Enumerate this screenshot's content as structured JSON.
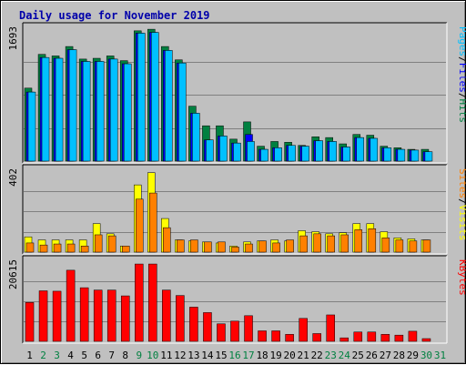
{
  "chart_data": {
    "type": "bar",
    "title": "Daily usage for November 2019",
    "x": [
      "1",
      "2",
      "3",
      "4",
      "5",
      "6",
      "7",
      "8",
      "9",
      "10",
      "11",
      "12",
      "13",
      "14",
      "15",
      "16",
      "17",
      "18",
      "19",
      "20",
      "21",
      "22",
      "23",
      "24",
      "25",
      "26",
      "27",
      "28",
      "29",
      "30",
      "31"
    ],
    "weekend_days": [
      2,
      3,
      9,
      10,
      16,
      17,
      23,
      24,
      30,
      31
    ],
    "colors": {
      "hits": "#008040",
      "files": "#0000ff",
      "pages": "#00c0ff",
      "visits": "#ffff00",
      "sites": "#ff8000",
      "kbytes": "#ff0000",
      "weekday_label": "#000000",
      "weekend_label": "#008040"
    },
    "panels": [
      {
        "name": "traffic",
        "ymax_label": "1693",
        "ymax": 1693,
        "right_label": [
          "Pages",
          "/",
          "Files",
          "/",
          "Hits"
        ],
        "right_label_colors": [
          "#00c0ff",
          "#000000",
          "#0000ff",
          "#000000",
          "#008040"
        ],
        "series": [
          {
            "name": "Hits",
            "color": "#008040",
            "values": [
              930,
              1360,
              1340,
              1460,
              1300,
              1310,
              1340,
              1280,
              1660,
              1680,
              1460,
              1290,
              700,
              450,
              450,
              280,
              500,
              190,
              250,
              240,
              200,
              310,
              300,
              220,
              340,
              330,
              190,
              170,
              150,
              150,
              0
            ]
          },
          {
            "name": "Files",
            "color": "#0000ff",
            "values": [
              880,
              1320,
              1310,
              1420,
              1270,
              1270,
              1300,
              1240,
              1630,
              1640,
              1410,
              1250,
              610,
              270,
              320,
              230,
              340,
              150,
              170,
              200,
              190,
              260,
              250,
              180,
              300,
              290,
              170,
              150,
              140,
              120,
              0
            ]
          },
          {
            "name": "Pages",
            "color": "#00c0ff",
            "values": [
              880,
              1320,
              1310,
              1420,
              1270,
              1270,
              1300,
              1240,
              1630,
              1640,
              1410,
              1250,
              610,
              270,
              320,
              230,
              250,
              150,
              170,
              200,
              190,
              260,
              250,
              180,
              300,
              290,
              170,
              150,
              140,
              120,
              0
            ]
          }
        ]
      },
      {
        "name": "visits",
        "ymax_label": "402",
        "ymax": 402,
        "right_label": [
          "Sites",
          "/",
          "Visits"
        ],
        "right_label_colors": [
          "#ff8000",
          "#000000",
          "#ffff00"
        ],
        "series": [
          {
            "name": "Visits",
            "color": "#ffff00",
            "values": [
              75,
              60,
              60,
              60,
              60,
              140,
              90,
              30,
              330,
              390,
              165,
              60,
              55,
              50,
              45,
              30,
              50,
              55,
              60,
              55,
              105,
              100,
              90,
              95,
              140,
              140,
              100,
              70,
              65,
              60,
              0
            ]
          },
          {
            "name": "Sites",
            "color": "#ff8000",
            "values": [
              45,
              35,
              40,
              40,
              30,
              85,
              80,
              30,
              260,
              290,
              120,
              60,
              60,
              50,
              50,
              25,
              40,
              55,
              45,
              60,
              80,
              90,
              80,
              85,
              110,
              115,
              70,
              60,
              55,
              60,
              0
            ]
          }
        ]
      },
      {
        "name": "kbytes",
        "ymax_label": "20615",
        "ymax": 20615,
        "right_label": [
          "KBytes"
        ],
        "right_label_colors": [
          "#ff0000"
        ],
        "series": [
          {
            "name": "KBytes",
            "color": "#ff0000",
            "values": [
              10000,
              13000,
              12900,
              18300,
              13800,
              13200,
              13200,
              11700,
              19900,
              19900,
              13200,
              11800,
              8800,
              7400,
              4500,
              5200,
              6600,
              2700,
              2700,
              1800,
              5900,
              2000,
              6800,
              900,
              2400,
              2400,
              1800,
              1600,
              2600,
              700,
              0
            ]
          }
        ]
      }
    ]
  }
}
